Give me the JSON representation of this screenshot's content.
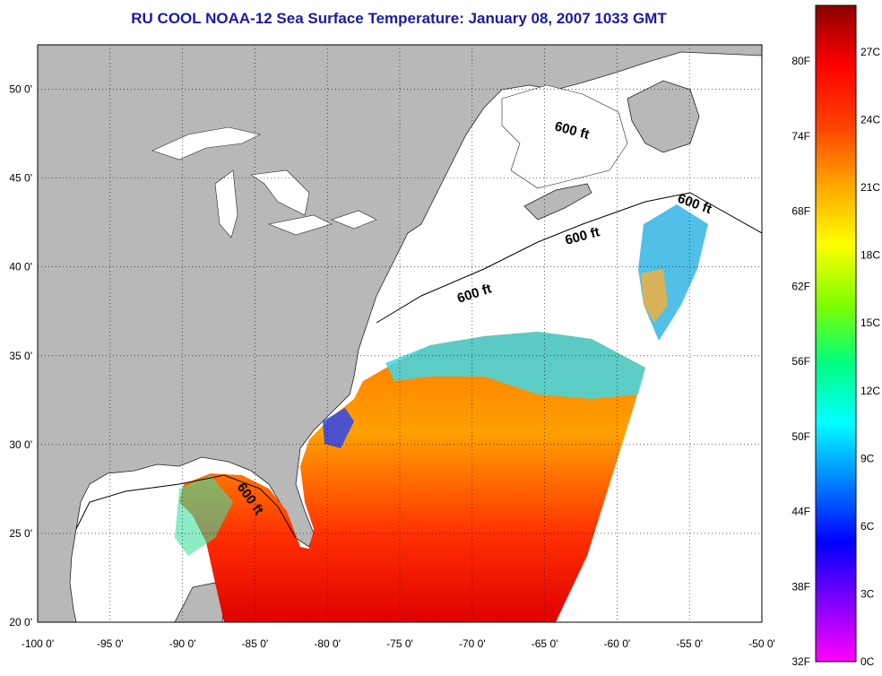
{
  "title": "RU COOL  NOAA-12  Sea Surface Temperature:  January 08, 2007 1033 GMT",
  "map": {
    "lon_range": [
      -100,
      -50
    ],
    "lat_range": [
      20,
      52.5
    ],
    "lon_ticks": [
      "-100 0'",
      "-95 0'",
      "-90 0'",
      "-85 0'",
      "-80 0'",
      "-75 0'",
      "-70 0'",
      "-65 0'",
      "-60 0'",
      "-55 0'",
      "-50 0'"
    ],
    "lat_ticks": [
      "20 0'",
      "25 0'",
      "30 0'",
      "35 0'",
      "40 0'",
      "45 0'",
      "50 0'"
    ],
    "contour_labels": [
      "600 ft",
      "600 ft",
      "600 ft",
      "600 ft",
      "600 ft"
    ],
    "land_color": "#b8b8b8",
    "nodata_color": "#ffffff",
    "grid": "dotted"
  },
  "colorbar": {
    "fahrenheit_labels": [
      "80F",
      "74F",
      "68F",
      "62F",
      "56F",
      "50F",
      "44F",
      "38F",
      "32F"
    ],
    "celsius_labels": [
      "27C",
      "24C",
      "21C",
      "18C",
      "15C",
      "12C",
      "9C",
      "6C",
      "3C",
      "0C"
    ],
    "colors": [
      "#ff00ff",
      "#8000ff",
      "#0000ff",
      "#0080ff",
      "#00ffff",
      "#00ff80",
      "#80ff00",
      "#ffff00",
      "#ffa500",
      "#ff4000",
      "#ff0000",
      "#8b0000"
    ]
  }
}
